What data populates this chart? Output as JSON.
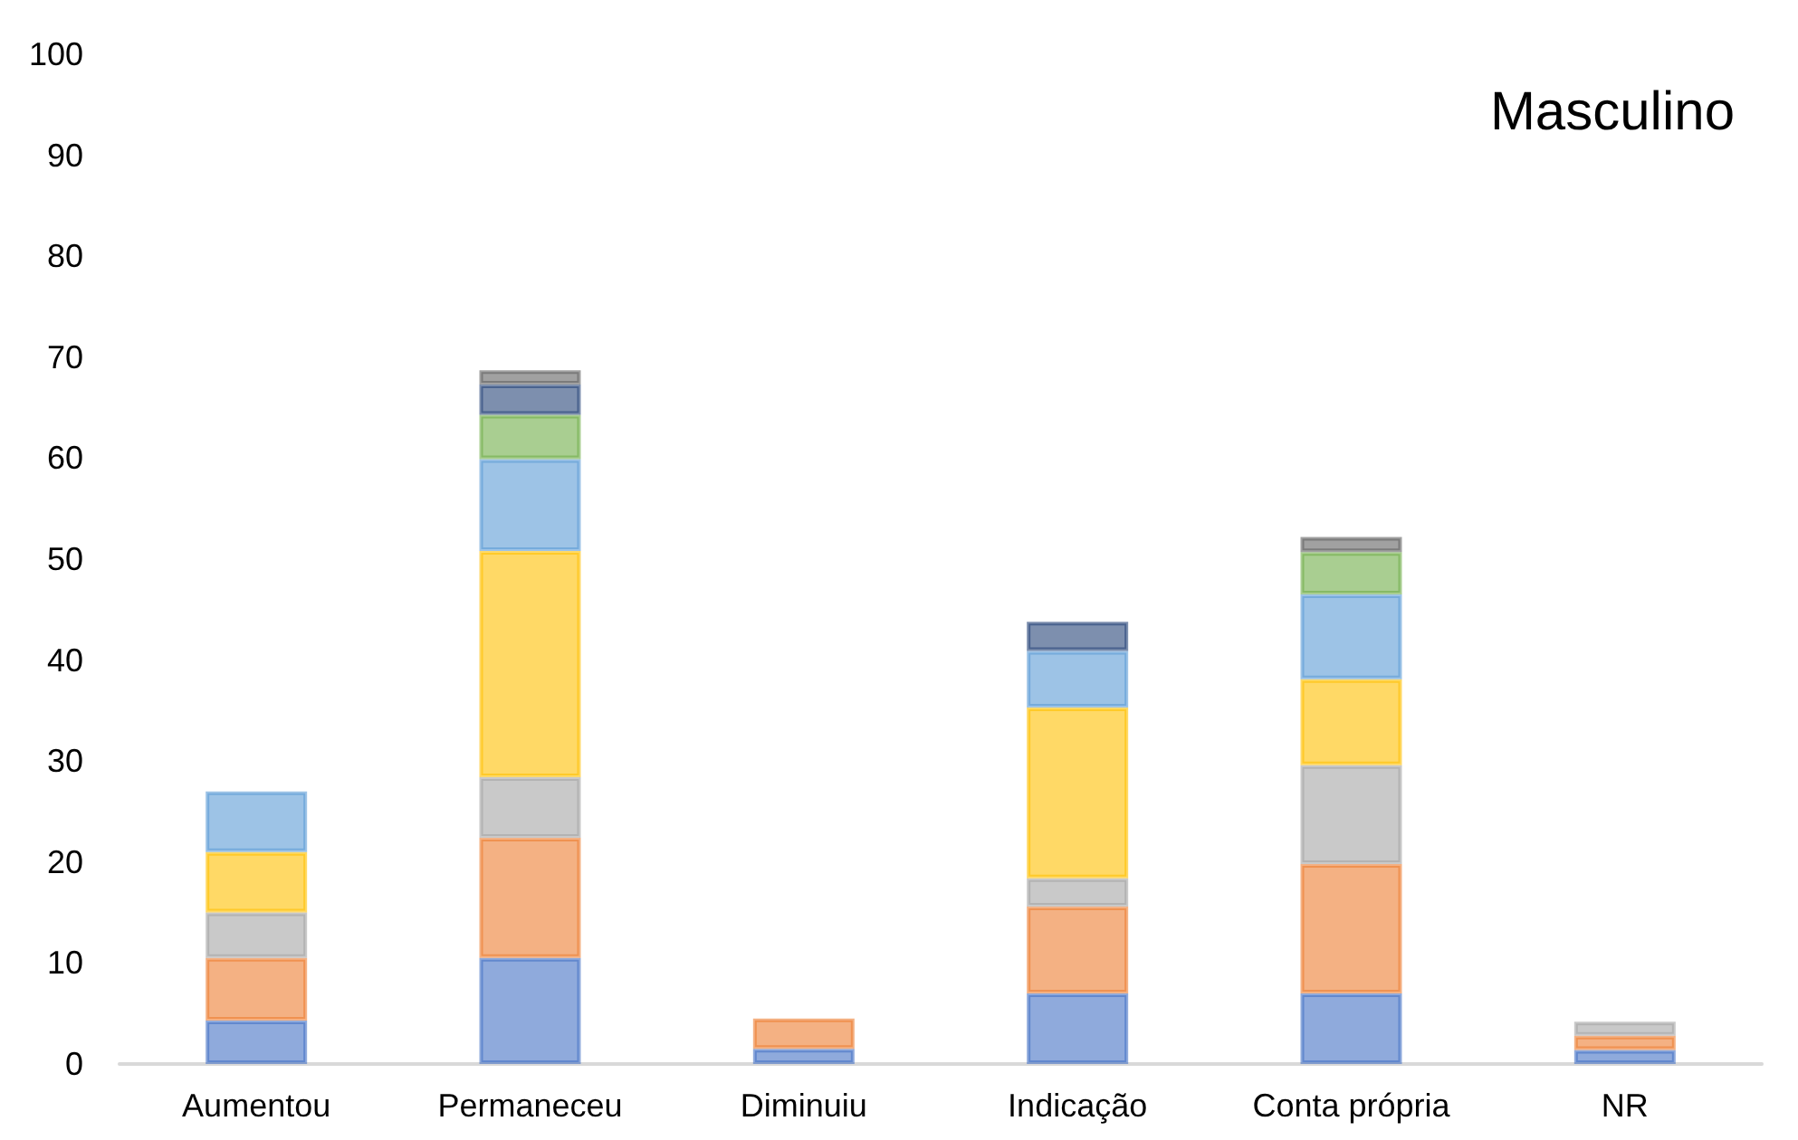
{
  "chart_data": {
    "type": "bar",
    "title": "Masculino",
    "stacked": true,
    "categories": [
      "Aumentou",
      "Permaneceu",
      "Diminuiu",
      "Indicação",
      "Conta própria",
      "NR"
    ],
    "series": [
      {
        "color": "#4472c4",
        "values": [
          4.3,
          10.5,
          1.5,
          7.0,
          7.0,
          1.4
        ]
      },
      {
        "color": "#ed7d31",
        "values": [
          6.2,
          11.9,
          3.0,
          8.6,
          12.8,
          1.4
        ]
      },
      {
        "color": "#a5a5a5",
        "values": [
          4.5,
          6.0,
          null,
          2.8,
          9.8,
          1.4
        ]
      },
      {
        "color": "#ffc000",
        "values": [
          6.0,
          22.4,
          null,
          16.9,
          8.5,
          null
        ]
      },
      {
        "color": "#5b9bd5",
        "values": [
          6.0,
          9.1,
          null,
          5.6,
          8.4,
          null
        ]
      },
      {
        "color": "#70ad47",
        "values": [
          null,
          4.4,
          null,
          null,
          4.2,
          null
        ]
      },
      {
        "color": "#264478",
        "values": [
          null,
          3.0,
          null,
          2.9,
          null,
          null
        ]
      },
      {
        "color": "#636363",
        "values": [
          null,
          1.4,
          null,
          null,
          1.5,
          null
        ]
      }
    ],
    "ylim": [
      0,
      100
    ],
    "yticks": [
      0,
      10,
      20,
      30,
      40,
      50,
      60,
      70,
      80,
      90,
      100
    ],
    "grid": false
  }
}
